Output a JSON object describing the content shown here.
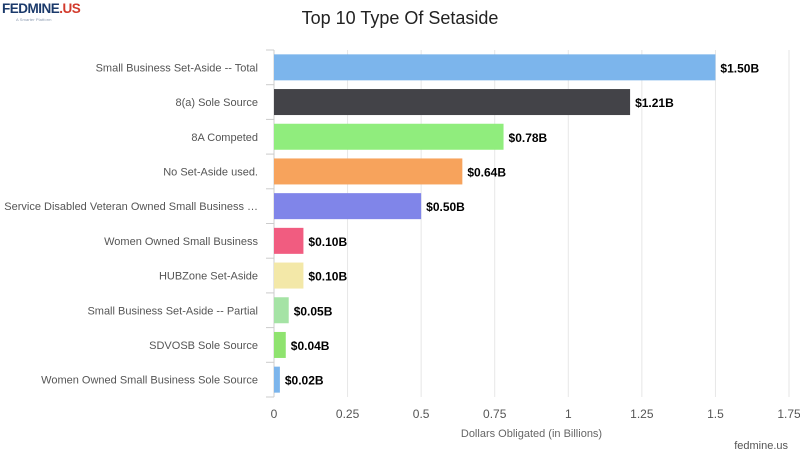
{
  "logo": {
    "text_main": "FEDMINE",
    "text_dot": ".US",
    "tagline": "A Smarter Platform"
  },
  "header": {
    "title": "Top 10 Type Of Setaside"
  },
  "footer": {
    "credit": "fedmine.us"
  },
  "chart_data": {
    "type": "bar",
    "orientation": "horizontal",
    "title": "Top 10 Type Of Setaside",
    "xlabel": "Dollars Obligated (in Billions)",
    "ylabel": "",
    "xlim": [
      0,
      1.75
    ],
    "x_ticks": [
      0,
      0.25,
      0.5,
      0.75,
      1,
      1.25,
      1.5,
      1.75
    ],
    "x_tick_labels": [
      "0",
      "0.25",
      "0.5",
      "0.75",
      "1",
      "1.25",
      "1.5",
      "1.75"
    ],
    "grid": true,
    "categories": [
      "Small Business Set-Aside -- Total",
      "8(a) Sole Source",
      "8A Competed",
      "No Set-Aside used.",
      "Service Disabled Veteran Owned Small Business …",
      "Women Owned Small Business",
      "HUBZone Set-Aside",
      "Small Business Set-Aside -- Partial",
      "SDVOSB Sole Source",
      "Women Owned Small Business Sole Source"
    ],
    "values": [
      1.5,
      1.21,
      0.78,
      0.64,
      0.5,
      0.1,
      0.1,
      0.05,
      0.04,
      0.02
    ],
    "data_labels": [
      "$1.50B",
      "$1.21B",
      "$0.78B",
      "$0.64B",
      "$0.50B",
      "$0.10B",
      "$0.10B",
      "$0.05B",
      "$0.04B",
      "$0.02B"
    ],
    "colors": [
      "#7cb5ec",
      "#434348",
      "#90ed7d",
      "#f7a35c",
      "#8085e9",
      "#f15c80",
      "#f3e8a8",
      "#a5e3a5",
      "#8fe36f",
      "#7cb5ec"
    ]
  }
}
